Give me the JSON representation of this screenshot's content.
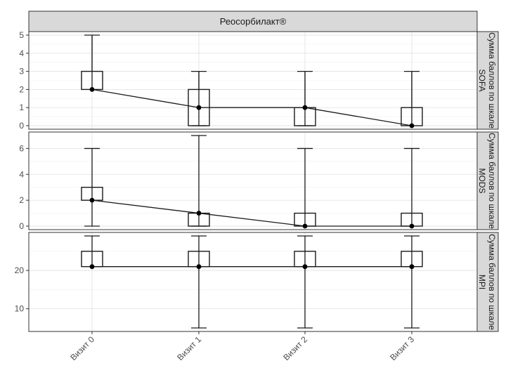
{
  "chart_data": {
    "type": "boxplot",
    "facet_title": "Реосорбилакт®",
    "categories": [
      "Визит 0",
      "Визит 1",
      "Визит 2",
      "Визит 3"
    ],
    "panels": [
      {
        "strip_label": "Сумма баллов по шкале SOFA",
        "ylim": [
          0,
          5
        ],
        "yticks": [
          0,
          1,
          2,
          3,
          4,
          5
        ],
        "median": [
          2,
          1,
          1,
          0
        ],
        "q1": [
          2,
          0,
          0,
          0
        ],
        "q3": [
          3,
          2,
          1,
          1
        ],
        "whisker_low": [
          2,
          0,
          0,
          0
        ],
        "whisker_high": [
          5,
          3,
          3,
          3
        ],
        "error_low": [
          2,
          0,
          0,
          0
        ],
        "error_high": [
          5,
          3,
          3,
          3
        ]
      },
      {
        "strip_label": "Сумма баллов по шкале MODS",
        "ylim": [
          0,
          7
        ],
        "yticks": [
          0,
          2,
          4,
          6
        ],
        "median": [
          2,
          1,
          0,
          0
        ],
        "q1": [
          2,
          0,
          0,
          0
        ],
        "q3": [
          3,
          1,
          1,
          1
        ],
        "error_low": [
          0,
          0,
          0,
          0
        ],
        "error_high": [
          6,
          7,
          6,
          6
        ]
      },
      {
        "strip_label": "Сумма баллов по шкале MPI",
        "ylim": [
          5,
          29
        ],
        "yticks": [
          10,
          20,
          30
        ],
        "median": [
          21,
          21,
          21,
          21
        ],
        "q1": [
          21,
          21,
          21,
          21
        ],
        "q3": [
          25,
          25,
          25,
          25
        ],
        "error_low": [
          21,
          5,
          5,
          5
        ],
        "error_high": [
          29,
          29,
          29,
          29
        ]
      }
    ],
    "grid": true,
    "legend": "none"
  }
}
